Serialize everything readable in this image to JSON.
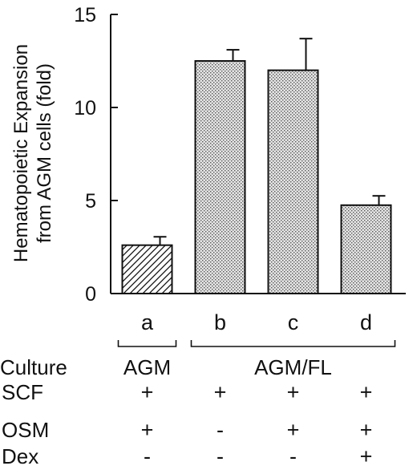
{
  "chart_data": {
    "type": "bar",
    "ylabel": [
      "Hematopoietic Expansion",
      "from AGM cells (fold)"
    ],
    "ylim": [
      0,
      15
    ],
    "yticks": [
      0,
      5,
      10,
      15
    ],
    "grid": false,
    "categories": [
      "a",
      "b",
      "c",
      "d"
    ],
    "values": [
      2.6,
      12.5,
      12.0,
      4.75
    ],
    "errors": [
      0.45,
      0.6,
      1.7,
      0.5
    ],
    "bar_patterns": [
      "hatch",
      "dots",
      "dots",
      "dots"
    ],
    "groups": [
      {
        "label": "AGM",
        "categories": [
          "a"
        ]
      },
      {
        "label": "AGM/FL",
        "categories": [
          "b",
          "c",
          "d"
        ]
      }
    ]
  },
  "conditions": {
    "culture_label": "Culture",
    "rows": [
      {
        "label": "SCF",
        "values": [
          "+",
          "+",
          "+",
          "+"
        ]
      },
      {
        "label": "OSM",
        "values": [
          "+",
          "-",
          "+",
          "+"
        ]
      },
      {
        "label": "Dex",
        "values": [
          "-",
          "-",
          "-",
          "+"
        ]
      }
    ]
  },
  "colors": {
    "ink": "#111111",
    "dots_fill": "#d6d6d6",
    "background": "#ffffff"
  }
}
